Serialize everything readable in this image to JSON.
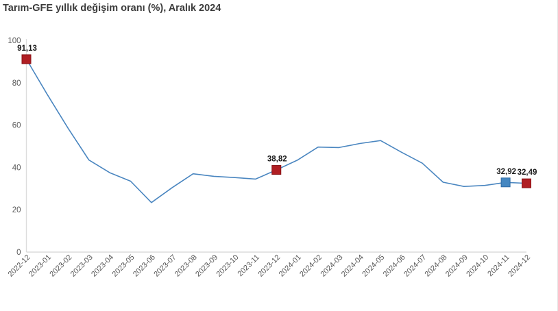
{
  "header": {
    "title": "Tarım-GFE yıllık değişim oranı (%), Aralık 2024"
  },
  "chart_data": {
    "type": "line",
    "title": "Tarım-GFE yıllık değişim oranı (%), Aralık 2024",
    "xlabel": "",
    "ylabel": "",
    "ylim": [
      0,
      100
    ],
    "yticks": [
      0,
      20,
      40,
      60,
      80,
      100
    ],
    "grid": false,
    "legend": "none",
    "line_color": "#4a86c0",
    "axis_color": "#dcdcdc",
    "tick_label_color": "#595959",
    "annotation_text_color": "#1a1a1a",
    "x": [
      "2022-12",
      "2023-01",
      "2023-02",
      "2023-03",
      "2023-04",
      "2023-05",
      "2023-06",
      "2023-07",
      "2023-08",
      "2023-09",
      "2023-10",
      "2023-11",
      "2023-12",
      "2024-01",
      "2024-02",
      "2024-03",
      "2024-04",
      "2024-05",
      "2024-06",
      "2024-07",
      "2024-08",
      "2024-09",
      "2024-10",
      "2024-11",
      "2024-12"
    ],
    "values": [
      91.13,
      74.5,
      58.5,
      43.5,
      37.5,
      33.5,
      23.4,
      30.5,
      37.0,
      35.8,
      35.2,
      34.5,
      38.82,
      43.4,
      49.6,
      49.4,
      51.3,
      52.7,
      47.2,
      42.0,
      33.0,
      31.0,
      31.5,
      32.92,
      32.49
    ],
    "annotations": [
      {
        "x": "2022-12",
        "label": "91,13",
        "marker_color": "#b01e23",
        "marker_border": "#871014"
      },
      {
        "x": "2023-12",
        "label": "38,82",
        "marker_color": "#b01e23",
        "marker_border": "#871014"
      },
      {
        "x": "2024-11",
        "label": "32,92",
        "marker_color": "#4587c1",
        "marker_border": "#2f6ba5"
      },
      {
        "x": "2024-12",
        "label": "32,49",
        "marker_color": "#b01e23",
        "marker_border": "#871014"
      }
    ]
  }
}
